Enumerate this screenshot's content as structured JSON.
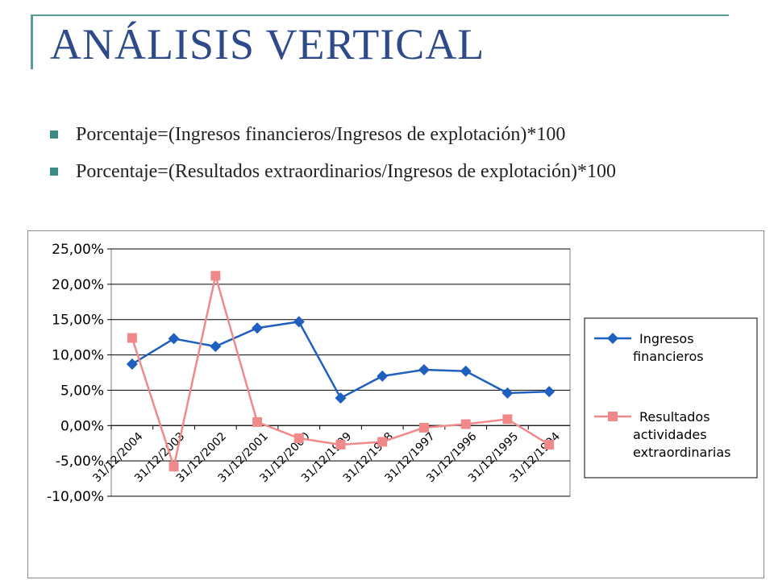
{
  "slide": {
    "title": "ANÁLISIS VERTICAL",
    "bullets": [
      "Porcentaje=(Ingresos financieros/Ingresos de explotación)*100",
      "Porcentaje=(Resultados extraordinarios/Ingresos de explotación)*100"
    ],
    "accent_color": "#5a9c95",
    "title_color": "#2f4a8a"
  },
  "chart_data": {
    "type": "line",
    "title": "",
    "xlabel": "",
    "ylabel": "",
    "categories": [
      "31/12/2004",
      "31/12/2003",
      "31/12/2002",
      "31/12/2001",
      "31/12/2000",
      "31/12/1999",
      "31/12/1998",
      "31/12/1997",
      "31/12/1996",
      "31/12/1995",
      "31/12/1994"
    ],
    "ylim": [
      -10,
      25
    ],
    "yticks": [
      "25,00%",
      "20,00%",
      "15,00%",
      "10,00%",
      "5,00%",
      "0,00%",
      "-5,00%",
      "-10,00%"
    ],
    "grid": "horizontal",
    "legend_position": "right",
    "series": [
      {
        "name": "Ingresos financieros",
        "legend_lines": [
          "Ingresos",
          "financieros"
        ],
        "color": "#1f5fbf",
        "marker": "diamond",
        "values": [
          8.7,
          12.3,
          11.2,
          13.8,
          14.7,
          3.9,
          7.0,
          7.9,
          7.7,
          4.6,
          4.8
        ]
      },
      {
        "name": "Resultados actividades extraordinarias",
        "legend_lines": [
          "Resultados",
          "actividades",
          "extraordinarias"
        ],
        "color": "#f08a8a",
        "marker": "square",
        "values": [
          12.4,
          -5.8,
          21.2,
          0.5,
          -1.8,
          -2.7,
          -2.3,
          -0.3,
          0.2,
          0.9,
          -2.7
        ]
      }
    ]
  }
}
